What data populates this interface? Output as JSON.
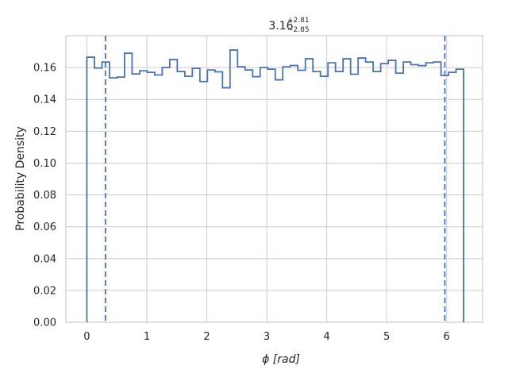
{
  "chart_data": {
    "type": "histogram",
    "title": {
      "value": "3.16",
      "upper": "+2.81",
      "lower": "−2.85"
    },
    "xlabel": {
      "symbol": "ϕ",
      "unit": "[rad]"
    },
    "ylabel": "Probability Density",
    "xlim": [
      -0.35,
      6.6
    ],
    "ylim": [
      0.0,
      0.18
    ],
    "xticks": [
      0,
      1,
      2,
      3,
      4,
      5,
      6
    ],
    "yticks": [
      0.0,
      0.02,
      0.04,
      0.06,
      0.08,
      0.1,
      0.12,
      0.14,
      0.16
    ],
    "ytick_labels": [
      "0.00",
      "0.02",
      "0.04",
      "0.06",
      "0.08",
      "0.10",
      "0.12",
      "0.14",
      "0.16"
    ],
    "grid": true,
    "line_color": "#4c72b0",
    "bin_range": [
      0.0,
      6.283
    ],
    "bin_values": [
      0.1665,
      0.1597,
      0.1635,
      0.1535,
      0.154,
      0.169,
      0.156,
      0.158,
      0.157,
      0.1553,
      0.16,
      0.165,
      0.1575,
      0.1545,
      0.1595,
      0.1512,
      0.1585,
      0.1573,
      0.1473,
      0.171,
      0.1605,
      0.1585,
      0.1543,
      0.16,
      0.159,
      0.1523,
      0.1605,
      0.1613,
      0.1583,
      0.1655,
      0.1575,
      0.1545,
      0.163,
      0.1575,
      0.1655,
      0.1558,
      0.166,
      0.1635,
      0.1575,
      0.1625,
      0.1645,
      0.1565,
      0.1635,
      0.1618,
      0.1612,
      0.163,
      0.1635,
      0.155,
      0.157,
      0.159
    ],
    "quantile_lines": [
      0.31,
      5.97
    ]
  }
}
